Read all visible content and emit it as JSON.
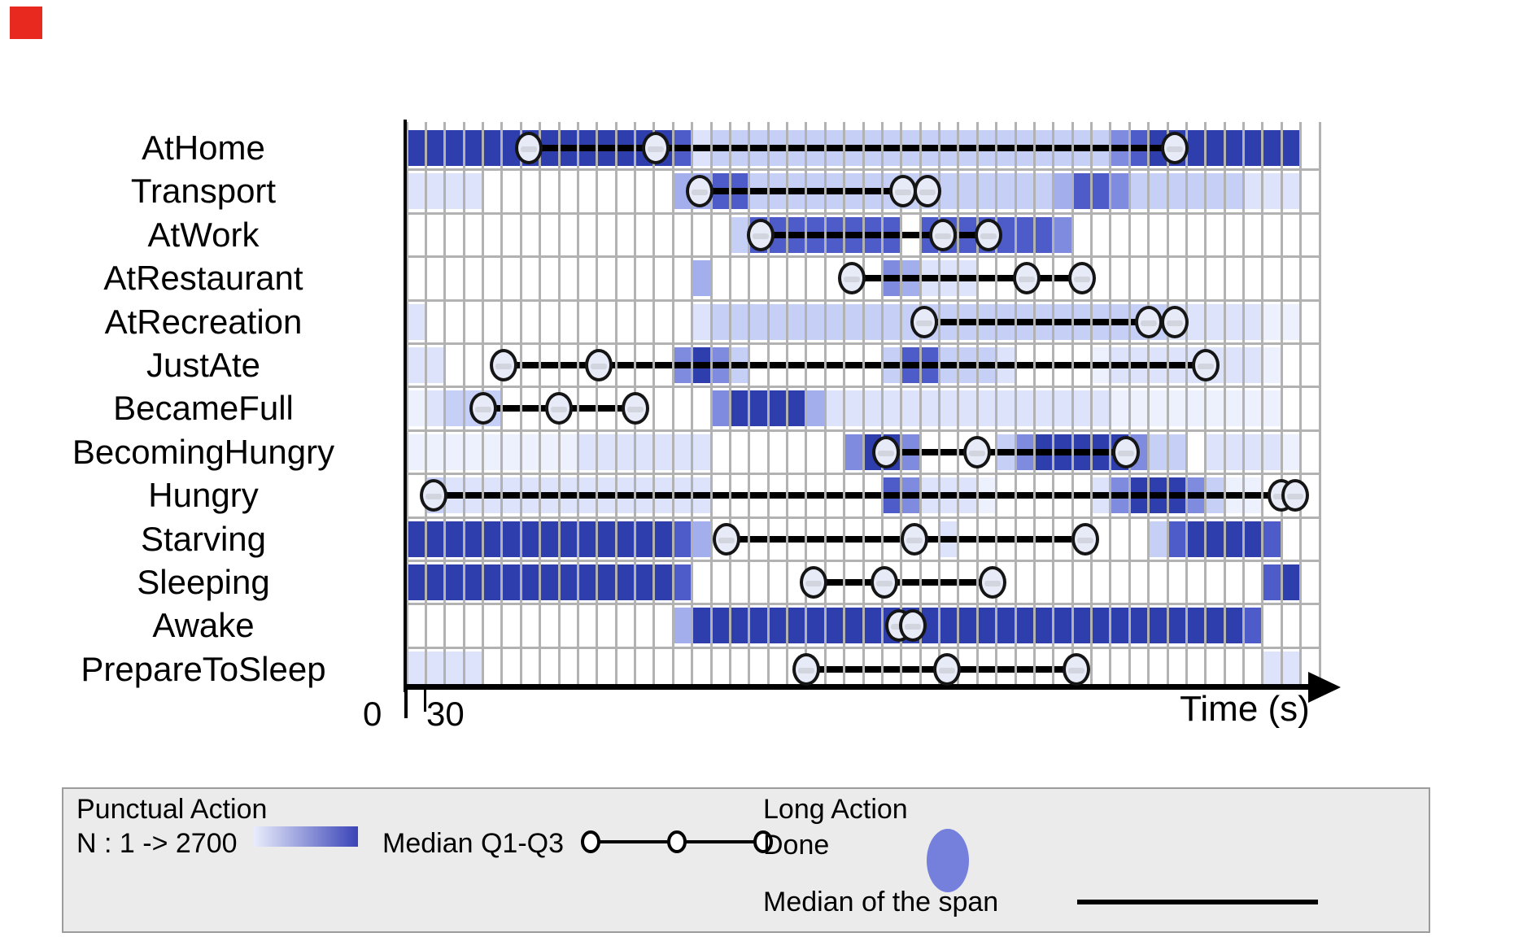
{
  "corner_marker": {
    "color": "#e8291f"
  },
  "axis": {
    "x_title": "Time (s)"
  },
  "legend": {
    "punctual_title": "Punctual Action",
    "n_label": "N : 1 -> 2700",
    "gradient_from": "#e9edfc",
    "gradient_to": "#3a44b7",
    "median_q_label": "Median Q1-Q3",
    "long_title": "Long Action",
    "done_label": "Done",
    "done_color": "#7580dd",
    "span_label": "Median of the span"
  },
  "chart_data": {
    "type": "heatmap",
    "title": "",
    "xlabel": "Time (s)",
    "x_axis": {
      "tick_labels": [
        "0",
        "30"
      ],
      "bin_seconds": 30,
      "n_bins": 48,
      "range_s": [
        0,
        1440
      ]
    },
    "grid": true,
    "intensity_scale": {
      "description": "N : 1 -> 2700",
      "levels": [
        "#ffffff",
        "#edf1fd",
        "#dde3fa",
        "#c6d0f6",
        "#a3afed",
        "#7e8bde",
        "#4d5cc8",
        "#2e3ead"
      ]
    },
    "rows": [
      {
        "name": "AtHome",
        "cells": [
          7,
          7,
          7,
          7,
          7,
          7,
          7,
          7,
          7,
          7,
          7,
          7,
          7,
          7,
          6,
          2,
          3,
          3,
          3,
          3,
          3,
          3,
          3,
          3,
          3,
          3,
          3,
          3,
          3,
          3,
          3,
          3,
          3,
          3,
          3,
          3,
          3,
          5,
          6,
          7,
          7,
          7,
          7,
          7,
          7,
          7,
          7,
          0
        ],
        "circles_s": [
          192,
          393,
          1212
        ],
        "line_s": [
          192,
          1212
        ]
      },
      {
        "name": "Transport",
        "cells": [
          2,
          2,
          2,
          2,
          0,
          0,
          0,
          0,
          0,
          0,
          0,
          0,
          0,
          0,
          4,
          4,
          6,
          6,
          3,
          3,
          3,
          3,
          3,
          3,
          3,
          3,
          3,
          3,
          3,
          3,
          3,
          3,
          3,
          3,
          4,
          6,
          6,
          5,
          3,
          3,
          3,
          3,
          3,
          3,
          2,
          2,
          2,
          0
        ],
        "circles_s": [
          462,
          783,
          822
        ],
        "line_s": [
          462,
          783
        ]
      },
      {
        "name": "AtWork",
        "cells": [
          0,
          0,
          0,
          0,
          0,
          0,
          0,
          0,
          0,
          0,
          0,
          0,
          0,
          0,
          0,
          0,
          0,
          3,
          6,
          6,
          6,
          6,
          6,
          6,
          6,
          6,
          0,
          6,
          6,
          6,
          6,
          6,
          6,
          6,
          5,
          0,
          0,
          0,
          0,
          0,
          0,
          0,
          0,
          0,
          0,
          0,
          0,
          0
        ],
        "circles_s": [
          558,
          846,
          918
        ],
        "line_s": [
          558,
          918
        ]
      },
      {
        "name": "AtRestaurant",
        "cells": [
          0,
          0,
          0,
          0,
          0,
          0,
          0,
          0,
          0,
          0,
          0,
          0,
          0,
          0,
          0,
          4,
          0,
          0,
          0,
          0,
          0,
          0,
          0,
          0,
          0,
          5,
          4,
          2,
          2,
          2,
          0,
          0,
          0,
          0,
          0,
          0,
          0,
          0,
          0,
          0,
          0,
          0,
          0,
          0,
          0,
          0,
          0,
          0
        ],
        "circles_s": [
          702,
          978,
          1065
        ],
        "line_s": [
          702,
          1065
        ]
      },
      {
        "name": "AtRecreation",
        "cells": [
          2,
          0,
          0,
          0,
          0,
          0,
          0,
          0,
          0,
          0,
          0,
          0,
          0,
          0,
          0,
          2,
          3,
          3,
          3,
          3,
          3,
          3,
          3,
          3,
          3,
          3,
          3,
          3,
          3,
          3,
          3,
          3,
          3,
          3,
          3,
          3,
          3,
          3,
          3,
          3,
          2,
          2,
          2,
          2,
          2,
          1,
          1,
          0
        ],
        "circles_s": [
          816,
          1170,
          1212
        ],
        "line_s": [
          816,
          1170
        ]
      },
      {
        "name": "JustAte",
        "cells": [
          2,
          2,
          0,
          0,
          0,
          0,
          0,
          0,
          0,
          0,
          0,
          0,
          0,
          0,
          5,
          7,
          5,
          3,
          0,
          0,
          0,
          0,
          0,
          0,
          0,
          3,
          6,
          6,
          3,
          3,
          3,
          2,
          0,
          0,
          0,
          0,
          1,
          2,
          2,
          2,
          2,
          2,
          2,
          2,
          2,
          1,
          0,
          0
        ],
        "circles_s": [
          153,
          303,
          1260
        ],
        "line_s": [
          153,
          1260
        ]
      },
      {
        "name": "BecameFull",
        "cells": [
          1,
          2,
          3,
          3,
          3,
          0,
          0,
          0,
          0,
          0,
          0,
          0,
          0,
          0,
          0,
          0,
          5,
          7,
          7,
          7,
          7,
          4,
          2,
          2,
          2,
          2,
          2,
          2,
          2,
          2,
          2,
          2,
          2,
          2,
          2,
          2,
          2,
          1,
          1,
          1,
          1,
          1,
          1,
          1,
          1,
          1,
          0,
          0
        ],
        "circles_s": [
          120,
          240,
          360
        ],
        "line_s": [
          120,
          360
        ]
      },
      {
        "name": "BecomingHungry",
        "cells": [
          1,
          1,
          1,
          1,
          1,
          1,
          1,
          1,
          1,
          2,
          2,
          2,
          2,
          2,
          2,
          2,
          0,
          0,
          0,
          0,
          0,
          0,
          0,
          5,
          7,
          7,
          5,
          0,
          0,
          0,
          0,
          3,
          5,
          7,
          7,
          7,
          7,
          7,
          5,
          3,
          3,
          0,
          2,
          2,
          2,
          2,
          1,
          0
        ],
        "circles_s": [
          756,
          900,
          1134
        ],
        "line_s": [
          756,
          1134
        ]
      },
      {
        "name": "Hungry",
        "cells": [
          0,
          3,
          2,
          2,
          2,
          2,
          2,
          2,
          2,
          2,
          2,
          2,
          2,
          2,
          2,
          2,
          0,
          0,
          0,
          0,
          0,
          0,
          0,
          0,
          0,
          6,
          5,
          2,
          2,
          2,
          1,
          0,
          0,
          0,
          0,
          0,
          2,
          5,
          7,
          7,
          7,
          5,
          3,
          1,
          1,
          0,
          0,
          0
        ],
        "circles_s": [
          42,
          1380,
          1401
        ],
        "line_s": [
          42,
          1380
        ]
      },
      {
        "name": "Starving",
        "cells": [
          7,
          7,
          7,
          7,
          7,
          7,
          7,
          7,
          7,
          7,
          7,
          7,
          7,
          7,
          6,
          4,
          0,
          0,
          0,
          0,
          0,
          0,
          0,
          0,
          0,
          0,
          0,
          0,
          2,
          0,
          0,
          0,
          0,
          0,
          0,
          0,
          0,
          0,
          0,
          3,
          6,
          7,
          7,
          7,
          7,
          6,
          0,
          0
        ],
        "circles_s": [
          504,
          801,
          1071
        ],
        "line_s": [
          504,
          1071
        ]
      },
      {
        "name": "Sleeping",
        "cells": [
          7,
          7,
          7,
          7,
          7,
          7,
          7,
          7,
          7,
          7,
          7,
          7,
          7,
          7,
          6,
          0,
          0,
          0,
          0,
          0,
          0,
          0,
          0,
          0,
          0,
          0,
          0,
          0,
          0,
          0,
          0,
          0,
          0,
          0,
          0,
          0,
          0,
          0,
          0,
          0,
          0,
          0,
          0,
          0,
          0,
          6,
          7,
          0
        ],
        "circles_s": [
          642,
          753,
          924
        ],
        "line_s": [
          642,
          924
        ]
      },
      {
        "name": "Awake",
        "cells": [
          0,
          0,
          0,
          0,
          0,
          0,
          0,
          0,
          0,
          0,
          0,
          0,
          0,
          0,
          4,
          7,
          7,
          7,
          7,
          7,
          7,
          7,
          7,
          7,
          7,
          7,
          7,
          7,
          7,
          7,
          7,
          7,
          7,
          7,
          7,
          7,
          7,
          7,
          7,
          7,
          7,
          7,
          7,
          7,
          6,
          0,
          0,
          0
        ],
        "circles_s": [
          777,
          798
        ],
        "line_s": [
          777,
          798
        ]
      },
      {
        "name": "PrepareToSleep",
        "cells": [
          2,
          2,
          2,
          2,
          0,
          0,
          0,
          0,
          0,
          0,
          0,
          0,
          0,
          0,
          0,
          0,
          0,
          0,
          0,
          0,
          0,
          0,
          0,
          0,
          0,
          0,
          0,
          0,
          0,
          0,
          0,
          0,
          0,
          0,
          0,
          0,
          0,
          0,
          0,
          0,
          0,
          0,
          0,
          0,
          0,
          2,
          2,
          0
        ],
        "circles_s": [
          630,
          852,
          1056
        ],
        "line_s": [
          630,
          1056
        ]
      }
    ]
  }
}
